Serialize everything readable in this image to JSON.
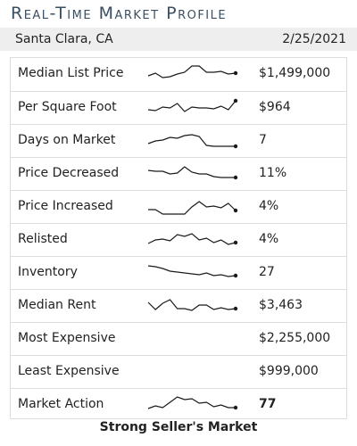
{
  "header": {
    "title": "Real-Time Market Profile",
    "location": "Santa Clara, CA",
    "date": "2/25/2021"
  },
  "metrics": [
    {
      "label": "Median List Price",
      "value": "$1,499,000",
      "spark": [
        0.4,
        0.55,
        0.3,
        0.35,
        0.5,
        0.6,
        0.95,
        0.95,
        0.6,
        0.6,
        0.65,
        0.5,
        0.55
      ]
    },
    {
      "label": "Per Square Foot",
      "value": "$964",
      "spark": [
        0.4,
        0.35,
        0.55,
        0.5,
        0.75,
        0.3,
        0.55,
        0.5,
        0.5,
        0.45,
        0.6,
        0.4,
        0.9
      ]
    },
    {
      "label": "Days on Market",
      "value": "7",
      "spark": [
        0.35,
        0.5,
        0.55,
        0.7,
        0.65,
        0.8,
        0.85,
        0.75,
        0.25,
        0.2,
        0.2,
        0.2,
        0.2
      ]
    },
    {
      "label": "Price Decreased",
      "value": "11%",
      "spark": [
        0.7,
        0.65,
        0.65,
        0.5,
        0.55,
        0.9,
        0.6,
        0.5,
        0.5,
        0.35,
        0.3,
        0.3,
        0.3
      ]
    },
    {
      "label": "Price Increased",
      "value": "4%",
      "spark": [
        0.35,
        0.35,
        0.1,
        0.1,
        0.1,
        0.1,
        0.5,
        0.8,
        0.5,
        0.55,
        0.45,
        0.7,
        0.3
      ]
    },
    {
      "label": "Relisted",
      "value": "4%",
      "spark": [
        0.3,
        0.5,
        0.55,
        0.45,
        0.8,
        0.7,
        0.85,
        0.5,
        0.6,
        0.35,
        0.5,
        0.25,
        0.35
      ]
    },
    {
      "label": "Inventory",
      "value": "27",
      "spark": [
        0.9,
        0.85,
        0.75,
        0.6,
        0.55,
        0.5,
        0.45,
        0.4,
        0.5,
        0.35,
        0.4,
        0.3,
        0.35
      ]
    },
    {
      "label": "Median Rent",
      "value": "$3,463",
      "spark": [
        0.7,
        0.3,
        0.65,
        0.85,
        0.35,
        0.35,
        0.25,
        0.55,
        0.55,
        0.3,
        0.4,
        0.3,
        0.35
      ]
    },
    {
      "label": "Most Expensive",
      "value": "$2,255,000",
      "spark": null
    },
    {
      "label": "Least Expensive",
      "value": "$999,000",
      "spark": null
    },
    {
      "label": "Market Action",
      "value": "77",
      "spark": [
        0.3,
        0.45,
        0.35,
        0.65,
        0.95,
        0.8,
        0.85,
        0.6,
        0.65,
        0.4,
        0.5,
        0.35,
        0.35
      ]
    }
  ],
  "footer": {
    "text": "Strong Seller's Market"
  },
  "colors": {
    "title": "#3a4f64",
    "sparkline": "#1a1a1a",
    "divider": "#dddddd",
    "subheader_bg": "#eeeeee"
  }
}
